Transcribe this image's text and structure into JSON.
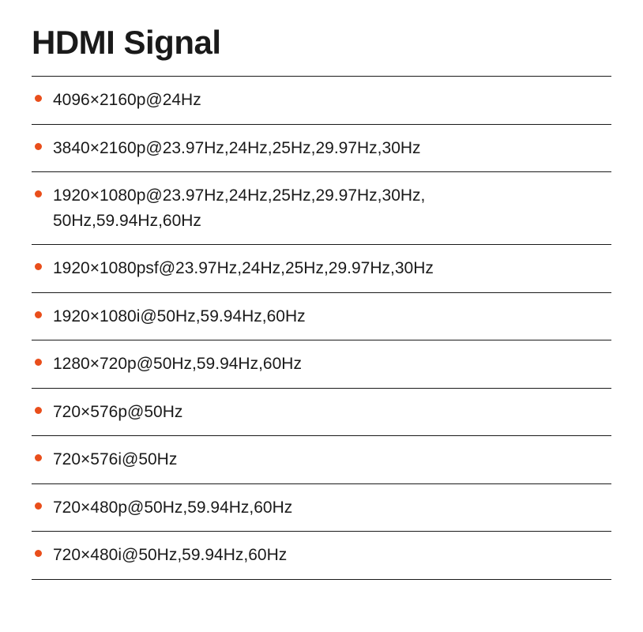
{
  "title": "HDMI Signal",
  "bullet_color": "#e94e1b",
  "text_color": "#1a1a1a",
  "border_color": "#1a1a1a",
  "background_color": "#ffffff",
  "title_fontsize": 42,
  "item_fontsize": 21,
  "signals": [
    "4096×2160p@24Hz",
    "3840×2160p@23.97Hz,24Hz,25Hz,29.97Hz,30Hz",
    "1920×1080p@23.97Hz,24Hz,25Hz,29.97Hz,30Hz, 50Hz,59.94Hz,60Hz",
    "1920×1080psf@23.97Hz,24Hz,25Hz,29.97Hz,30Hz",
    "1920×1080i@50Hz,59.94Hz,60Hz",
    "1280×720p@50Hz,59.94Hz,60Hz",
    "720×576p@50Hz",
    "720×576i@50Hz",
    "720×480p@50Hz,59.94Hz,60Hz",
    "720×480i@50Hz,59.94Hz,60Hz"
  ]
}
